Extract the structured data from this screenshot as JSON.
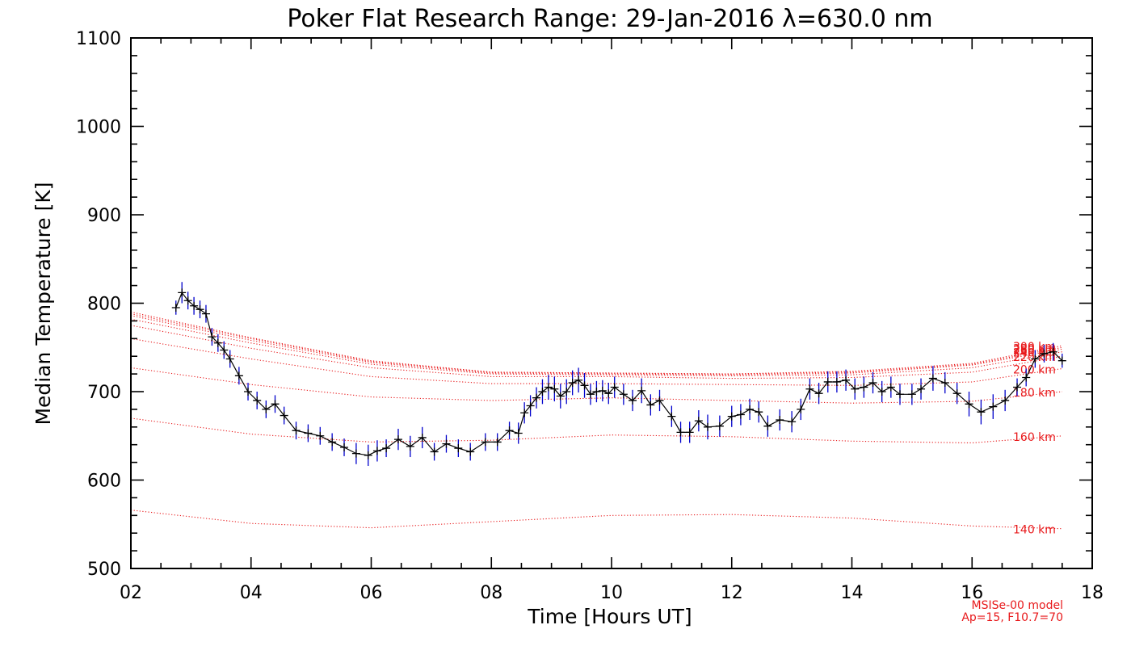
{
  "chart_data": {
    "type": "line",
    "title": "Poker Flat Research Range: 29-Jan-2016 λ=630.0 nm",
    "xlabel": "Time [Hours UT]",
    "ylabel": "Median Temperature [K]",
    "xlim": [
      2,
      18
    ],
    "ylim": [
      500,
      1100
    ],
    "xticks": [
      "02",
      "04",
      "06",
      "08",
      "10",
      "12",
      "14",
      "16",
      "18"
    ],
    "yticks": [
      "500",
      "600",
      "700",
      "800",
      "900",
      "1000",
      "1100"
    ],
    "footnote": [
      "MSISe-00 model",
      "Ap=15, F10.7=70"
    ],
    "colors": {
      "data": "#000000",
      "errorbar": "#0000cc",
      "model": "#e8191b",
      "axis": "#000000"
    },
    "series": [
      {
        "name": "Median Temperature",
        "x": [
          2.75,
          2.85,
          2.95,
          3.05,
          3.15,
          3.25,
          3.35,
          3.45,
          3.55,
          3.65,
          3.8,
          3.95,
          4.1,
          4.25,
          4.4,
          4.55,
          4.75,
          4.95,
          5.15,
          5.35,
          5.55,
          5.75,
          5.95,
          6.1,
          6.25,
          6.45,
          6.65,
          6.85,
          7.05,
          7.25,
          7.45,
          7.65,
          7.9,
          8.1,
          8.3,
          8.45,
          8.55,
          8.65,
          8.75,
          8.85,
          8.95,
          9.05,
          9.15,
          9.25,
          9.35,
          9.45,
          9.55,
          9.65,
          9.75,
          9.85,
          9.95,
          10.05,
          10.2,
          10.35,
          10.5,
          10.65,
          10.8,
          11.0,
          11.15,
          11.3,
          11.45,
          11.6,
          11.8,
          12.0,
          12.15,
          12.3,
          12.45,
          12.6,
          12.8,
          13.0,
          13.15,
          13.3,
          13.45,
          13.6,
          13.75,
          13.9,
          14.05,
          14.2,
          14.35,
          14.5,
          14.65,
          14.8,
          15.0,
          15.15,
          15.35,
          15.55,
          15.75,
          15.95,
          16.15,
          16.35,
          16.55,
          16.75,
          16.9,
          17.05,
          17.2,
          17.35,
          17.5
        ],
        "y": [
          795,
          812,
          803,
          797,
          793,
          788,
          762,
          755,
          747,
          737,
          718,
          700,
          690,
          680,
          686,
          673,
          656,
          653,
          650,
          643,
          637,
          630,
          628,
          633,
          636,
          646,
          638,
          648,
          632,
          641,
          636,
          632,
          643,
          643,
          656,
          653,
          676,
          684,
          693,
          700,
          705,
          703,
          695,
          700,
          710,
          713,
          707,
          697,
          700,
          701,
          698,
          705,
          697,
          690,
          701,
          685,
          690,
          672,
          654,
          654,
          667,
          660,
          661,
          672,
          674,
          680,
          677,
          661,
          668,
          666,
          680,
          703,
          698,
          711,
          711,
          713,
          703,
          705,
          710,
          700,
          705,
          697,
          697,
          703,
          715,
          710,
          698,
          686,
          677,
          683,
          690,
          705,
          716,
          737,
          743,
          745,
          735
        ],
        "errors": [
          8,
          12,
          10,
          10,
          10,
          10,
          10,
          10,
          10,
          10,
          10,
          10,
          10,
          10,
          10,
          10,
          10,
          10,
          10,
          10,
          10,
          12,
          12,
          12,
          10,
          12,
          12,
          12,
          10,
          10,
          10,
          10,
          10,
          10,
          10,
          12,
          12,
          12,
          12,
          14,
          14,
          14,
          14,
          14,
          14,
          14,
          14,
          12,
          12,
          12,
          12,
          12,
          12,
          12,
          14,
          12,
          12,
          12,
          12,
          12,
          12,
          14,
          12,
          12,
          12,
          12,
          12,
          12,
          12,
          12,
          12,
          12,
          12,
          12,
          12,
          12,
          12,
          12,
          12,
          12,
          12,
          12,
          12,
          12,
          14,
          12,
          12,
          14,
          14,
          14,
          12,
          10,
          10,
          10,
          10,
          10,
          8
        ]
      }
    ],
    "model_curves": [
      {
        "label": "140 km",
        "x": [
          2,
          4,
          6,
          8,
          10,
          12,
          14,
          16,
          17.5
        ],
        "y": [
          566,
          551,
          546,
          553,
          560,
          561,
          557,
          548,
          545
        ]
      },
      {
        "label": "160 km",
        "x": [
          2,
          4,
          6,
          8,
          10,
          12,
          14,
          16,
          17.5
        ],
        "y": [
          670,
          652,
          643,
          645,
          651,
          649,
          644,
          642,
          650
        ]
      },
      {
        "label": "180 km",
        "x": [
          2,
          4,
          6,
          8,
          10,
          12,
          14,
          16,
          17.5
        ],
        "y": [
          727,
          708,
          694,
          690,
          693,
          690,
          687,
          689,
          700
        ]
      },
      {
        "label": "200 km",
        "x": [
          2,
          4,
          6,
          8,
          10,
          12,
          14,
          16,
          17.5
        ],
        "y": [
          760,
          737,
          717,
          709,
          709,
          708,
          707,
          711,
          726
        ]
      },
      {
        "label": "220 km",
        "x": [
          2,
          4,
          6,
          8,
          10,
          12,
          14,
          16,
          17.5
        ],
        "y": [
          775,
          749,
          727,
          717,
          717,
          715,
          716,
          722,
          740
        ]
      },
      {
        "label": "240 km",
        "x": [
          2,
          4,
          6,
          8,
          10,
          12,
          14,
          16,
          17.5
        ],
        "y": [
          782,
          755,
          731,
          720,
          719,
          718,
          719,
          727,
          745
        ]
      },
      {
        "label": "260 km",
        "x": [
          2,
          4,
          6,
          8,
          10,
          12,
          14,
          16,
          17.5
        ],
        "y": [
          786,
          758,
          733,
          721,
          720,
          719,
          721,
          730,
          748
        ]
      },
      {
        "label": "280 km",
        "x": [
          2,
          4,
          6,
          8,
          10,
          12,
          14,
          16,
          17.5
        ],
        "y": [
          788,
          760,
          734,
          722,
          721,
          720,
          722,
          731,
          750
        ]
      },
      {
        "label": "300 km",
        "x": [
          2,
          4,
          6,
          8,
          10,
          12,
          14,
          16,
          17.5
        ],
        "y": [
          790,
          761,
          735,
          722,
          721,
          720,
          723,
          732,
          752
        ]
      }
    ]
  }
}
